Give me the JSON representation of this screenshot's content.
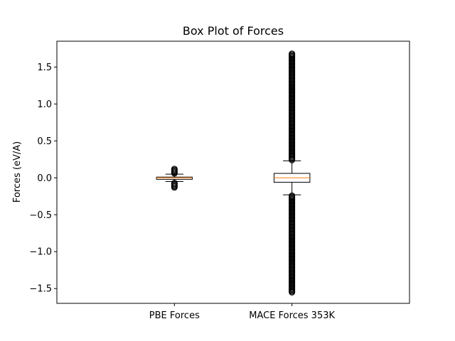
{
  "chart_data": {
    "type": "box",
    "title": "Box Plot of Forces",
    "xlabel": "",
    "ylabel": "Forces (eV/A)",
    "ylim": [
      -1.7,
      1.85
    ],
    "yticks": [
      -1.5,
      -1.0,
      -0.5,
      0.0,
      0.5,
      1.0,
      1.5
    ],
    "ytick_labels": [
      "−1.5",
      "−1.0",
      "−0.5",
      "0.0",
      "0.5",
      "1.0",
      "1.5"
    ],
    "categories": [
      "PBE Forces",
      "MACE Forces 353K"
    ],
    "boxes": [
      {
        "q1": -0.02,
        "median": 0.0,
        "q3": 0.01,
        "whisker_low": -0.05,
        "whisker_high": 0.05,
        "outliers_low": [
          -0.13,
          -0.06
        ],
        "outliers_high": [
          0.06,
          0.13
        ]
      },
      {
        "q1": -0.06,
        "median": 0.0,
        "q3": 0.06,
        "whisker_low": -0.23,
        "whisker_high": 0.23,
        "outliers_low": [
          -1.55,
          -0.24
        ],
        "outliers_high": [
          0.24,
          1.69
        ]
      }
    ],
    "grid": false,
    "colors": {
      "box": "#000000",
      "median": "#ff7f0e",
      "flier": "#000000"
    }
  }
}
